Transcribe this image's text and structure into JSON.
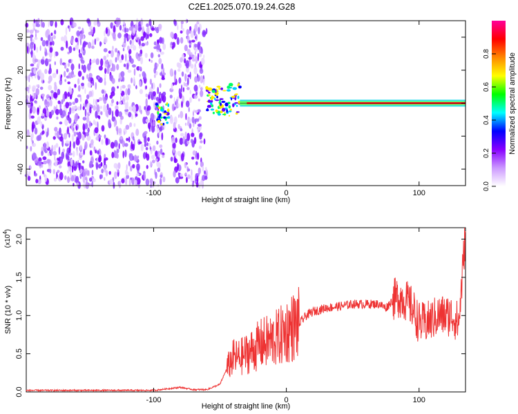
{
  "title": "C2E1.2025.070.19.24.G28",
  "chart_data": [
    {
      "type": "heatmap",
      "xlabel": "Height of straight line (km)",
      "ylabel": "Frequency (Hz)",
      "xlim": [
        -196,
        135
      ],
      "ylim": [
        -50,
        50
      ],
      "xticks": [
        -100,
        0,
        100
      ],
      "yticks": [
        -40,
        -20,
        0,
        20,
        40
      ],
      "colorbar": {
        "label": "Normalized spectral amplitude",
        "range": [
          0,
          1
        ],
        "ticks": [
          "0.0",
          "0.2",
          "0.4",
          "0.6",
          "0.8"
        ],
        "colormap": [
          "#ffffff",
          "#cc99ff",
          "#8800ff",
          "#0000ff",
          "#00ffff",
          "#00ff00",
          "#ffff00",
          "#ff8800",
          "#ff0000",
          "#ff0099"
        ]
      },
      "features": {
        "noise_region_x": [
          -196,
          -60
        ],
        "transition_x": [
          -60,
          -35
        ],
        "carrier_frequency_hz": 0,
        "carrier_start_x": -35
      }
    },
    {
      "type": "line",
      "xlabel": "Height of straight line (km)",
      "ylabel": "SNR (10 * v/v)",
      "scale_label": "(x10",
      "scale_exponent": "4",
      "xlim": [
        -196,
        135
      ],
      "ylim": [
        0,
        2.15
      ],
      "xticks": [
        -100,
        0,
        100
      ],
      "yticks": [
        "0.0",
        "0.5",
        "1.0",
        "1.5",
        "2.0"
      ],
      "series": [
        {
          "color": "#ee3333",
          "x": [
            -196,
            -150,
            -100,
            -80,
            -70,
            -60,
            -50,
            -45,
            -40,
            -35,
            -30,
            -25,
            -20,
            -15,
            -10,
            -5,
            0,
            5,
            10,
            15,
            20,
            30,
            40,
            50,
            60,
            70,
            75,
            80,
            85,
            90,
            95,
            100,
            105,
            110,
            115,
            120,
            125,
            130,
            135
          ],
          "y": [
            0.02,
            0.02,
            0.02,
            0.06,
            0.03,
            0.03,
            0.1,
            0.3,
            0.45,
            0.45,
            0.5,
            0.55,
            0.62,
            0.65,
            0.68,
            0.72,
            0.8,
            0.85,
            0.9,
            1.0,
            1.05,
            1.1,
            1.12,
            1.15,
            1.15,
            1.15,
            1.1,
            1.2,
            1.25,
            1.2,
            1.1,
            0.9,
            0.9,
            0.95,
            1.0,
            1.0,
            1.0,
            0.9,
            2.1
          ]
        }
      ]
    }
  ]
}
